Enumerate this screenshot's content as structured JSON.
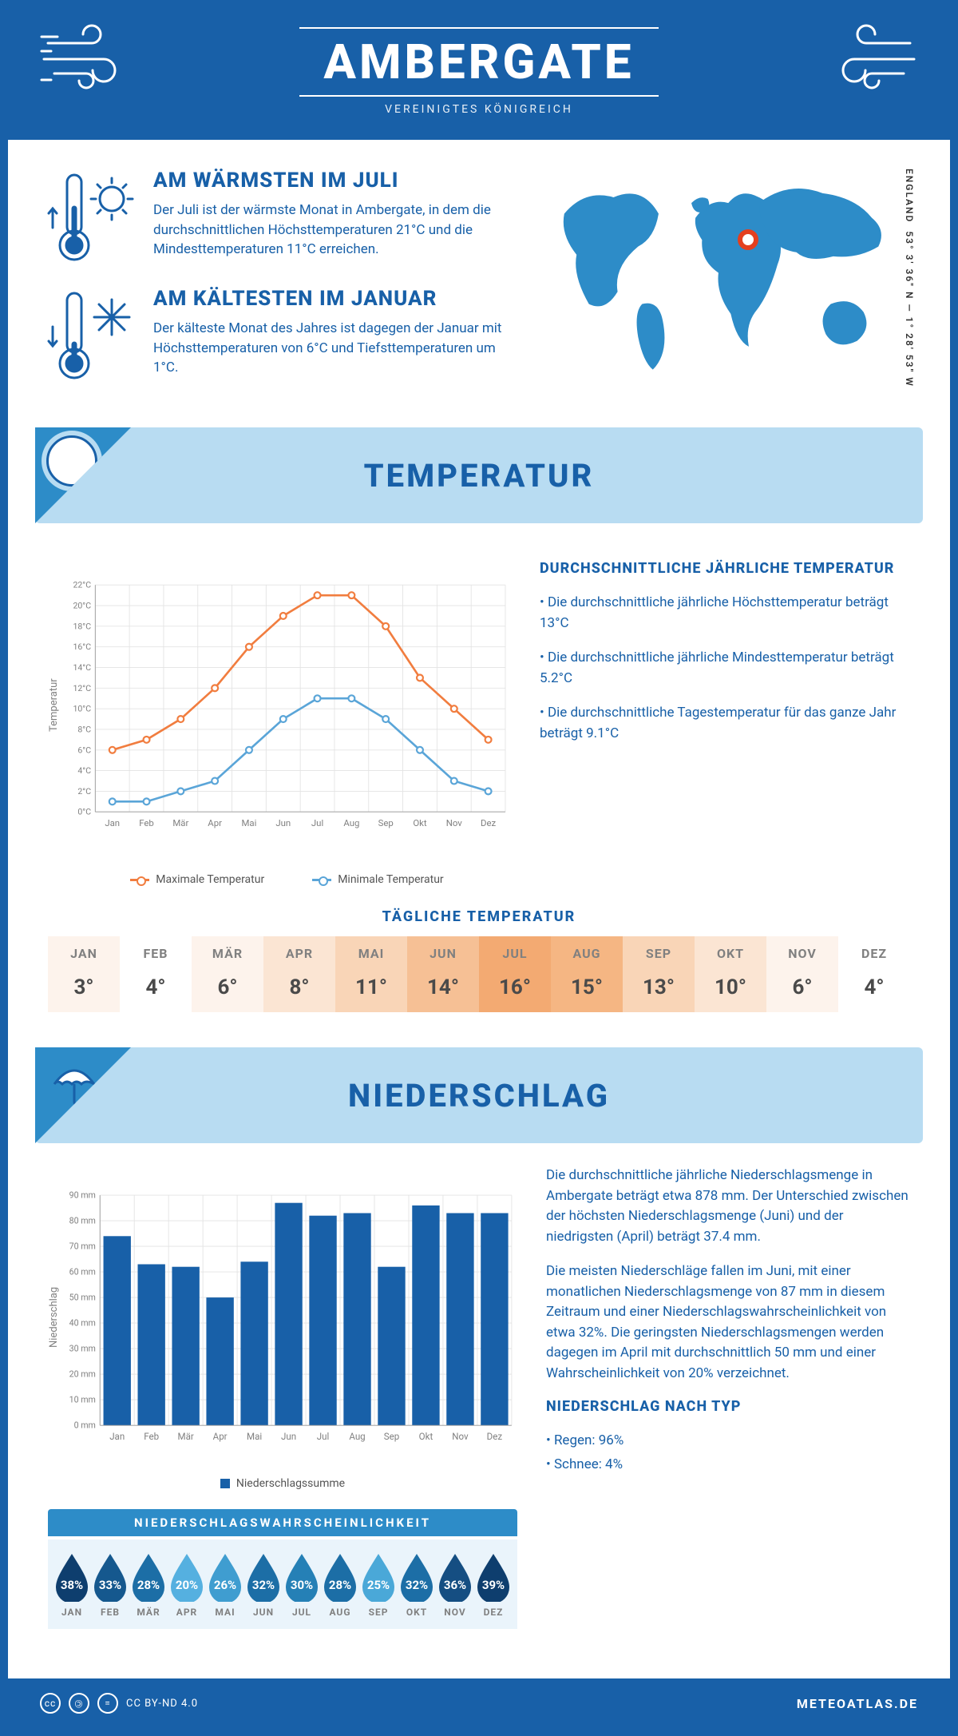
{
  "header": {
    "city": "AMBERGATE",
    "country": "VEREINIGTES KÖNIGREICH"
  },
  "coords": {
    "text": "53° 3' 36\" N — 1° 28' 53\" W",
    "region": "ENGLAND"
  },
  "warm": {
    "title": "AM WÄRMSTEN IM JULI",
    "text": "Der Juli ist der wärmste Monat in Ambergate, in dem die durchschnittlichen Höchsttemperaturen 21°C und die Mindesttemperaturen 11°C erreichen."
  },
  "cold": {
    "title": "AM KÄLTESTEN IM JANUAR",
    "text": "Der kälteste Monat des Jahres ist dagegen der Januar mit Höchsttemperaturen von 6°C und Tiefsttemperaturen um 1°C."
  },
  "temp_section": {
    "title": "TEMPERATUR",
    "ylabel": "Temperatur"
  },
  "temp_chart": {
    "months": [
      "Jan",
      "Feb",
      "Mär",
      "Apr",
      "Mai",
      "Jun",
      "Jul",
      "Aug",
      "Sep",
      "Okt",
      "Nov",
      "Dez"
    ],
    "max": [
      6,
      7,
      9,
      12,
      16,
      19,
      21,
      21,
      18,
      13,
      10,
      7
    ],
    "min": [
      1,
      1,
      2,
      3,
      6,
      9,
      11,
      11,
      9,
      6,
      3,
      2
    ],
    "ylim": [
      0,
      22
    ],
    "ytick": 2,
    "max_color": "#f17d3f",
    "min_color": "#5aa5d8",
    "legend_max": "Maximale Temperatur",
    "legend_min": "Minimale Temperatur"
  },
  "temp_side": {
    "title": "DURCHSCHNITTLICHE JÄHRLICHE TEMPERATUR",
    "b1": "• Die durchschnittliche jährliche Höchsttemperatur beträgt 13°C",
    "b2": "• Die durchschnittliche jährliche Mindesttemperatur beträgt 5.2°C",
    "b3": "• Die durchschnittliche Tagestemperatur für das ganze Jahr beträgt 9.1°C"
  },
  "daily": {
    "title": "TÄGLICHE TEMPERATUR",
    "months": [
      "JAN",
      "FEB",
      "MÄR",
      "APR",
      "MAI",
      "JUN",
      "JUL",
      "AUG",
      "SEP",
      "OKT",
      "NOV",
      "DEZ"
    ],
    "values": [
      "3°",
      "4°",
      "6°",
      "8°",
      "11°",
      "14°",
      "16°",
      "15°",
      "13°",
      "10°",
      "6°",
      "4°"
    ],
    "colors": [
      "#fdf3ec",
      "#ffffff",
      "#fdf3ec",
      "#fbe5d3",
      "#f9d5b7",
      "#f6c095",
      "#f3aa72",
      "#f5b683",
      "#f9d5b7",
      "#fbe5d3",
      "#fdf3ec",
      "#ffffff"
    ]
  },
  "precip_section": {
    "title": "NIEDERSCHLAG",
    "ylabel": "Niederschlag"
  },
  "precip_chart": {
    "months": [
      "Jan",
      "Feb",
      "Mär",
      "Apr",
      "Mai",
      "Jun",
      "Jul",
      "Aug",
      "Sep",
      "Okt",
      "Nov",
      "Dez"
    ],
    "values": [
      74,
      63,
      62,
      50,
      64,
      87,
      82,
      83,
      62,
      86,
      83,
      83
    ],
    "ylim": [
      0,
      90
    ],
    "ytick": 10,
    "bar_color": "#1860a8",
    "legend": "Niederschlagssumme"
  },
  "precip_text": {
    "p1": "Die durchschnittliche jährliche Niederschlagsmenge in Ambergate beträgt etwa 878 mm. Der Unterschied zwischen der höchsten Niederschlagsmenge (Juni) und der niedrigsten (April) beträgt 37.4 mm.",
    "p2": "Die meisten Niederschläge fallen im Juni, mit einer monatlichen Niederschlagsmenge von 87 mm in diesem Zeitraum und einer Niederschlagswahrscheinlichkeit von etwa 32%. Die geringsten Niederschlagsmengen werden dagegen im April mit durchschnittlich 50 mm und einer Wahrscheinlichkeit von 20% verzeichnet.",
    "type_title": "NIEDERSCHLAG NACH TYP",
    "t1": "• Regen: 96%",
    "t2": "• Schnee: 4%"
  },
  "prob": {
    "title": "NIEDERSCHLAGSWAHRSCHEINLICHKEIT",
    "months": [
      "JAN",
      "FEB",
      "MÄR",
      "APR",
      "MAI",
      "JUN",
      "JUL",
      "AUG",
      "SEP",
      "OKT",
      "NOV",
      "DEZ"
    ],
    "values": [
      38,
      33,
      28,
      20,
      26,
      32,
      30,
      28,
      25,
      32,
      36,
      39
    ],
    "colors": [
      "#0e3e6e",
      "#15588e",
      "#1c6ea6",
      "#55b0e0",
      "#3f9dd0",
      "#1c6ea6",
      "#2580b6",
      "#1c6ea6",
      "#4aa8d8",
      "#1c6ea6",
      "#154e82",
      "#0e3e6e"
    ]
  },
  "footer": {
    "license": "CC BY-ND 4.0",
    "brand": "METEOATLAS.DE"
  }
}
